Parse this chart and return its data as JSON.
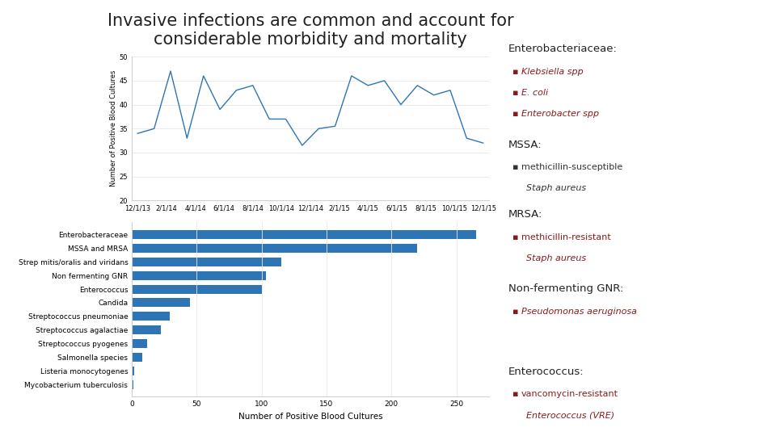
{
  "title_line1": "Invasive infections are common and account for",
  "title_line2": "considerable morbidity and mortality",
  "title_fontsize": 15,
  "title_color": "#222222",
  "background_color": "#ffffff",
  "line_x_labels": [
    "12/1/13",
    "2/1/14",
    "4/1/14",
    "6/1/14",
    "8/1/14",
    "10/1/14",
    "12/1/14",
    "2/1/15",
    "4/1/15",
    "6/1/15",
    "8/1/15",
    "10/1/15",
    "12/1/15"
  ],
  "line_y_values": [
    34,
    35,
    47,
    33,
    46,
    39,
    43,
    44,
    37,
    37,
    31.5,
    35,
    35,
    46,
    44,
    45,
    40,
    44,
    42,
    43.5,
    33,
    32
  ],
  "line_color": "#2e75b6",
  "line_ylim": [
    20,
    50
  ],
  "line_yticks": [
    20,
    25,
    30,
    35,
    40,
    45,
    50
  ],
  "line_ylabel": "Number of Positive Blood Cultures",
  "line_ylabel_fontsize": 6,
  "line_tick_fontsize": 6,
  "bar_categories": [
    "Enterobacteraceae",
    "MSSA and MRSA",
    "Strep mitis/oralis and viridans",
    "Non fermenting GNR",
    "Enterococcus",
    "Candida",
    "Streptococcus pneumoniae",
    "Streptococcus agalactiae",
    "Streptococcus pyogenes",
    "Salmonella species",
    "Listeria monocytogenes",
    "Mycobacterium tuberculosis"
  ],
  "bar_values": [
    265,
    220,
    115,
    103,
    100,
    45,
    29,
    22,
    12,
    8,
    2,
    1
  ],
  "bar_color": "#2e75b6",
  "bar_xlabel": "Number of Positive Blood Cultures",
  "bar_xlabel_fontsize": 7.5,
  "bar_tick_fontsize": 6.5,
  "bar_xlim": [
    0,
    275
  ],
  "bar_xticks": [
    0,
    50,
    100,
    150,
    200,
    250
  ],
  "annotation_blocks": [
    {
      "header": "Enterobacteriaceae:",
      "items": [
        {
          "text": "Klebsiella spp",
          "style": "italic",
          "bullet": true,
          "color": "#8b1a1a"
        },
        {
          "text": "E. coli",
          "style": "italic",
          "bullet": true,
          "color": "#8b1a1a"
        },
        {
          "text": "Enterobacter spp",
          "style": "italic",
          "bullet": true,
          "color": "#8b1a1a"
        }
      ]
    },
    {
      "header": "MSSA:",
      "items": [
        {
          "text": "methicillin-susceptible",
          "style": "normal",
          "bullet": true,
          "color": "#333333"
        },
        {
          "text": "Staph aureus",
          "style": "italic",
          "bullet": false,
          "color": "#333333"
        }
      ]
    },
    {
      "header": "MRSA:",
      "items": [
        {
          "text": "methicillin-resistant",
          "style": "normal",
          "bullet": true,
          "color": "#8b1a1a"
        },
        {
          "text": "Staph aureus",
          "style": "italic",
          "bullet": false,
          "color": "#8b1a1a"
        }
      ]
    },
    {
      "header": "Non-fermenting GNR:",
      "items": [
        {
          "text": "Pseudomonas aeruginosa",
          "style": "italic",
          "bullet": true,
          "color": "#8b1a1a"
        }
      ]
    },
    {
      "header": "Enterococcus:",
      "items": [
        {
          "text": "vancomycin-resistant",
          "style": "normal",
          "bullet": true,
          "color": "#8b1a1a"
        },
        {
          "text": "Enterococcus (VRE)",
          "style": "italic",
          "bullet": false,
          "color": "#8b1a1a"
        }
      ]
    }
  ]
}
